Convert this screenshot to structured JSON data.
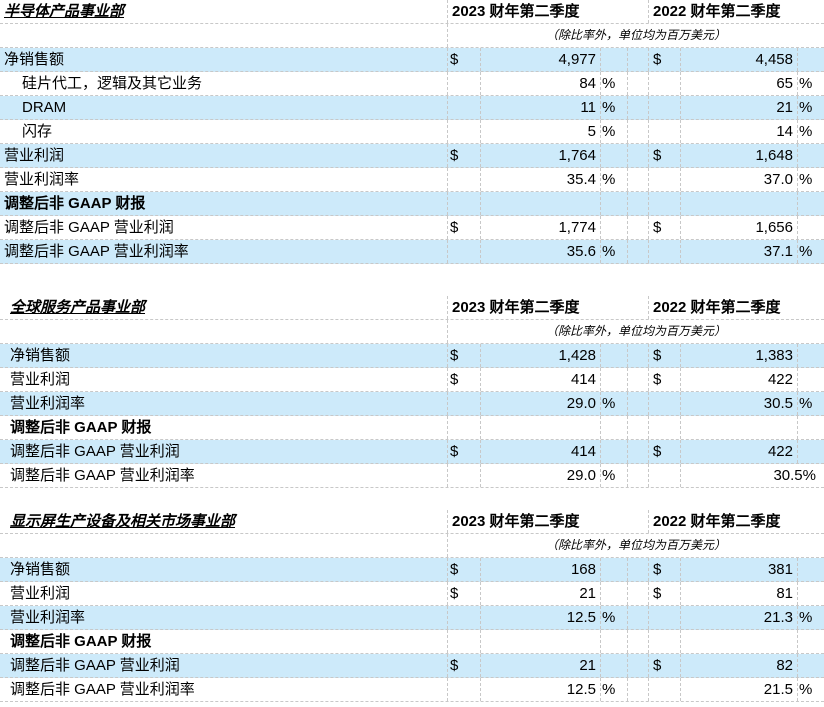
{
  "sections": [
    {
      "title": "半导体产品事业部",
      "col_2023": "2023 财年第二季度",
      "col_2022": "2022 财年第二季度",
      "units": "（除比率外，单位均为百万美元）",
      "rows": [
        {
          "label": "净销售额",
          "style": "blue",
          "v23": "4,977",
          "v22": "4,458",
          "dollar": true
        },
        {
          "label": "硅片代工，逻辑及其它业务",
          "indent": true,
          "v23": "84",
          "v22": "65",
          "pct": true
        },
        {
          "label": "DRAM",
          "indent": true,
          "style": "blue",
          "v23": "11",
          "v22": "21",
          "pct": true
        },
        {
          "label": "闪存",
          "indent": true,
          "v23": "5",
          "v22": "14",
          "pct": true
        },
        {
          "label": "营业利润",
          "style": "blue",
          "v23": "1,764",
          "v22": "1,648",
          "dollar": true
        },
        {
          "label": "营业利润率",
          "v23": "35.4",
          "v22": "37.0",
          "pct": true
        },
        {
          "label": "调整后非 GAAP 财报",
          "style": "blue",
          "bold": true
        },
        {
          "label": "调整后非 GAAP 营业利润",
          "v23": "1,774",
          "v22": "1,656",
          "dollar": true
        },
        {
          "label": "调整后非 GAAP 营业利润率",
          "style": "blue",
          "v23": "35.6",
          "v22": "37.1",
          "pct": true
        }
      ]
    },
    {
      "title": "全球服务产品事业部",
      "col_2023": "2023 财年第二季度",
      "col_2022": "2022 财年第二季度",
      "units": "（除比率外，单位均为百万美元）",
      "rows": [
        {
          "label": "净销售额",
          "style": "blue",
          "v23": "1,428",
          "v22": "1,383",
          "dollar": true
        },
        {
          "label": "营业利润",
          "v23": "414",
          "v22": "422",
          "dollar": true
        },
        {
          "label": "营业利润率",
          "style": "blue",
          "v23": "29.0",
          "v22": "30.5",
          "pct": true
        },
        {
          "label": "调整后非 GAAP 财报",
          "bold": true
        },
        {
          "label": "调整后非 GAAP 营业利润",
          "style": "blue",
          "v23": "414",
          "v22": "422",
          "dollar": true
        },
        {
          "label": "调整后非 GAAP 营业利润率",
          "v23": "29.0",
          "v22": "30.5%",
          "pct23only": true
        }
      ]
    },
    {
      "title": "显示屏生产设备及相关市场事业部",
      "col_2023": "2023 财年第二季度",
      "col_2022": "2022 财年第二季度",
      "units": "（除比率外，单位均为百万美元）",
      "rows": [
        {
          "label": "净销售额",
          "style": "blue",
          "v23": "168",
          "v22": "381",
          "dollar": true
        },
        {
          "label": "营业利润",
          "v23": "21",
          "v22": "81",
          "dollar": true
        },
        {
          "label": "营业利润率",
          "style": "blue",
          "v23": "12.5",
          "v22": "21.3",
          "pct": true
        },
        {
          "label": "调整后非 GAAP 财报",
          "bold": true
        },
        {
          "label": "调整后非 GAAP 营业利润",
          "style": "blue",
          "v23": "21",
          "v22": "82",
          "dollar": true
        },
        {
          "label": "调整后非 GAAP 营业利润率",
          "v23": "12.5",
          "v22": "21.5",
          "pct": true
        }
      ]
    }
  ],
  "symbols": {
    "dollar": "$",
    "percent": "%"
  }
}
